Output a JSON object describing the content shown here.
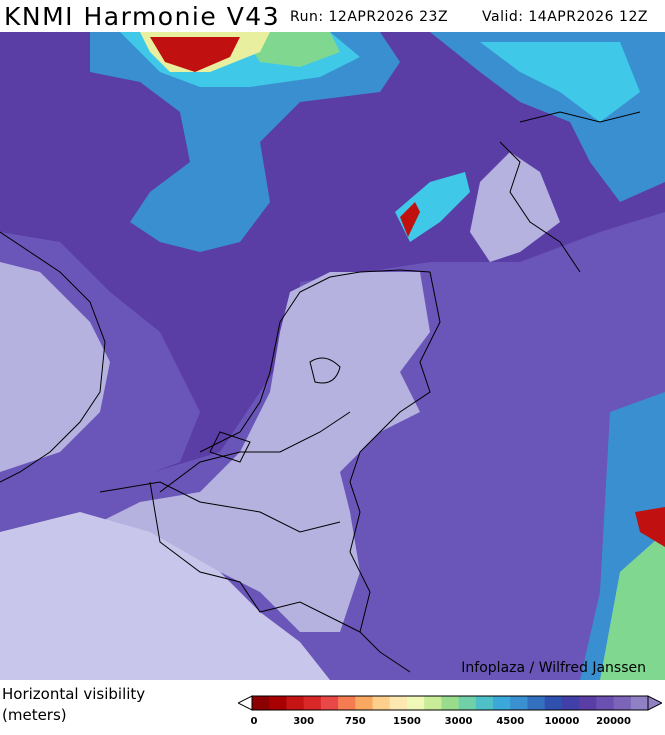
{
  "header": {
    "title": "KNMI Harmonie V43",
    "run": "Run: 12APR2026 23Z",
    "valid": "Valid: 14APR2026 12Z"
  },
  "map": {
    "credit": "Infoplaza / Wilfred Janssen",
    "palette": {
      "deep_purple": "#5a3ea6",
      "purple": "#6a55b8",
      "light_purple": "#b5b2e0",
      "lavender": "#c8c6ea",
      "blue": "#3a8fd0",
      "cyan": "#40c8e8",
      "green": "#80d890",
      "yellow": "#e8f0a0",
      "red": "#c01010"
    }
  },
  "legend": {
    "label_line1": "Horizontal visibility",
    "label_line2": "(meters)",
    "ticks": [
      "0",
      "300",
      "750",
      "1500",
      "3000",
      "4500",
      "10000",
      "20000"
    ],
    "colors": [
      "#8b0000",
      "#a80000",
      "#c41414",
      "#d82828",
      "#e84848",
      "#f47c50",
      "#f8a860",
      "#fcd08c",
      "#fce8b0",
      "#f0f8b8",
      "#c8ec98",
      "#98dc8c",
      "#70d0a8",
      "#50c0c8",
      "#3aa8d8",
      "#3a90d0",
      "#3470c0",
      "#3050b0",
      "#4040a8",
      "#5a3ea6",
      "#6a50b0",
      "#7c64b8",
      "#9080c4"
    ]
  }
}
